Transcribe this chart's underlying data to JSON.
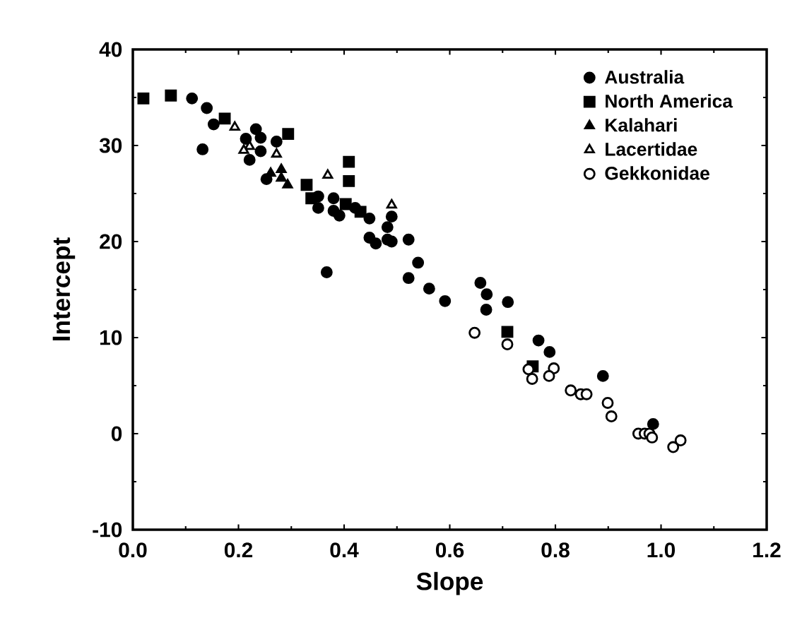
{
  "chart_data": {
    "type": "scatter",
    "xlabel": "Slope",
    "ylabel": "Intercept",
    "xlim": [
      0,
      1.2
    ],
    "ylim": [
      -10,
      40
    ],
    "xticks": [
      {
        "value": 0,
        "label": "0.0"
      },
      {
        "value": 0.2,
        "label": "0.2"
      },
      {
        "value": 0.4,
        "label": "0.4"
      },
      {
        "value": 0.6,
        "label": "0.6"
      },
      {
        "value": 0.8,
        "label": "0.8"
      },
      {
        "value": 1.0,
        "label": "1.0"
      },
      {
        "value": 1.2,
        "label": "1.2"
      }
    ],
    "yticks": [
      -10,
      0,
      10,
      20,
      30,
      40
    ],
    "grid": false,
    "legend": "top right",
    "series": [
      {
        "name": "Australia",
        "color": "#000000",
        "marker": "circle",
        "x": [
          0.112,
          0.14,
          0.153,
          0.132,
          0.233,
          0.214,
          0.242,
          0.242,
          0.221,
          0.272,
          0.253,
          0.351,
          0.38,
          0.351,
          0.38,
          0.391,
          0.421,
          0.448,
          0.482,
          0.49,
          0.448,
          0.46,
          0.482,
          0.49,
          0.522,
          0.367,
          0.54,
          0.522,
          0.561,
          0.591,
          0.658,
          0.67,
          0.669,
          0.71,
          0.768,
          0.789,
          0.89,
          0.985
        ],
        "values": [
          34.9,
          33.9,
          32.2,
          29.6,
          31.7,
          30.7,
          30.8,
          29.4,
          28.5,
          30.4,
          26.5,
          24.7,
          24.5,
          23.5,
          23.2,
          22.7,
          23.5,
          22.4,
          21.5,
          22.6,
          20.4,
          19.8,
          20.2,
          20.0,
          20.2,
          16.8,
          17.8,
          16.2,
          15.1,
          13.8,
          15.7,
          14.5,
          12.9,
          13.7,
          9.7,
          8.5,
          6.0,
          1.0
        ]
      },
      {
        "name": "North America",
        "color": "#000000",
        "marker": "square",
        "x": [
          0.02,
          0.072,
          0.174,
          0.294,
          0.409,
          0.409,
          0.329,
          0.338,
          0.403,
          0.431,
          0.709,
          0.757
        ],
        "values": [
          34.9,
          35.2,
          32.8,
          31.2,
          28.3,
          26.3,
          25.9,
          24.5,
          23.9,
          23.1,
          10.6,
          7.0
        ]
      },
      {
        "name": "Kalahari",
        "color": "#000000",
        "marker": "triangle",
        "x": [
          0.261,
          0.281,
          0.281,
          0.293
        ],
        "values": [
          27.1,
          27.5,
          26.6,
          25.9
        ]
      },
      {
        "name": "Lacertidae",
        "color": "#000000",
        "marker": "triangle",
        "x": [
          0.193,
          0.221,
          0.21,
          0.272,
          0.369,
          0.49
        ],
        "values": [
          31.9,
          29.9,
          29.5,
          29.1,
          26.9,
          23.8
        ]
      },
      {
        "name": "Gekkonidae",
        "color": "#000000",
        "marker": "circle",
        "x": [
          0.647,
          0.709,
          0.749,
          0.756,
          0.797,
          0.788,
          0.829,
          0.848,
          0.859,
          0.899,
          0.906,
          0.957,
          0.969,
          0.978,
          0.983,
          1.023,
          1.037
        ],
        "values": [
          10.5,
          9.3,
          6.7,
          5.7,
          6.8,
          6.0,
          4.5,
          4.1,
          4.1,
          3.2,
          1.8,
          0.0,
          0.0,
          0.0,
          -0.4,
          -1.4,
          -0.7
        ]
      }
    ]
  }
}
